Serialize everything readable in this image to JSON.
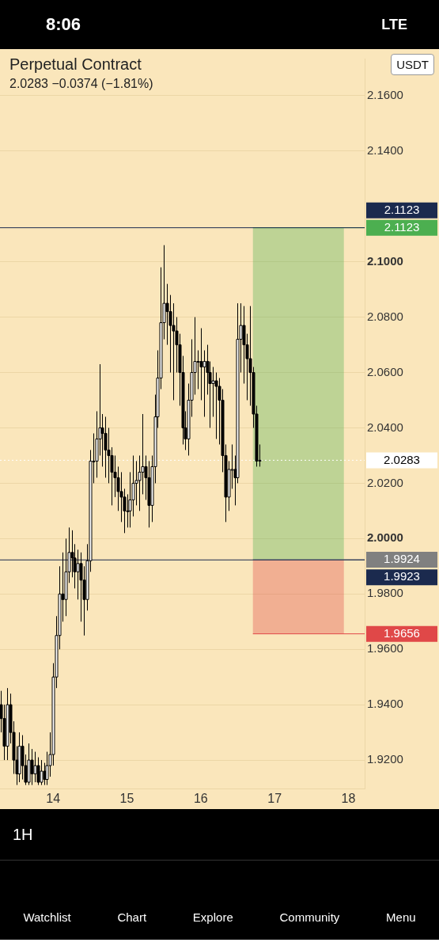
{
  "chart_data": {
    "type": "candlestick",
    "title": "Perpetual Contract",
    "subtitle": "2.0283 −0.0374 (−1.81%)",
    "x": [
      13.292,
      13.333,
      13.375,
      13.417,
      13.458,
      13.5,
      13.542,
      13.583,
      13.625,
      13.667,
      13.708,
      13.75,
      13.792,
      13.833,
      13.875,
      13.917,
      13.958,
      14,
      14.042,
      14.083,
      14.125,
      14.167,
      14.208,
      14.25,
      14.292,
      14.333,
      14.375,
      14.417,
      14.458,
      14.5,
      14.542,
      14.583,
      14.625,
      14.667,
      14.708,
      14.75,
      14.792,
      14.833,
      14.875,
      14.917,
      14.958,
      15,
      15.042,
      15.083,
      15.125,
      15.167,
      15.208,
      15.25,
      15.292,
      15.333,
      15.375,
      15.417,
      15.458,
      15.5,
      15.542,
      15.583,
      15.625,
      15.667,
      15.708,
      15.75,
      15.792,
      15.833,
      15.875,
      15.917,
      15.958,
      16,
      16.042,
      16.083,
      16.125,
      16.167,
      16.208,
      16.25,
      16.292,
      16.333,
      16.375,
      16.417,
      16.458,
      16.5,
      16.542,
      16.583,
      16.625,
      16.667,
      16.708,
      16.75,
      16.792
    ],
    "ohlc": [
      [
        1.94,
        1.945,
        1.93,
        1.935
      ],
      [
        1.935,
        1.94,
        1.92,
        1.925
      ],
      [
        1.925,
        1.946,
        1.92,
        1.94
      ],
      [
        1.94,
        1.944,
        1.926,
        1.93
      ],
      [
        1.93,
        1.934,
        1.915,
        1.92
      ],
      [
        1.92,
        1.925,
        1.911,
        1.915
      ],
      [
        1.915,
        1.93,
        1.912,
        1.925
      ],
      [
        1.925,
        1.929,
        1.913,
        1.918
      ],
      [
        1.918,
        1.922,
        1.911,
        1.912
      ],
      [
        1.912,
        1.926,
        1.911,
        1.92
      ],
      [
        1.92,
        1.924,
        1.911,
        1.915
      ],
      [
        1.915,
        1.923,
        1.912,
        1.918
      ],
      [
        1.918,
        1.921,
        1.911,
        1.912
      ],
      [
        1.912,
        1.92,
        1.911,
        1.916
      ],
      [
        1.916,
        1.919,
        1.911,
        1.913
      ],
      [
        1.913,
        1.923,
        1.911,
        1.918
      ],
      [
        1.918,
        1.93,
        1.914,
        1.922
      ],
      [
        1.922,
        1.955,
        1.918,
        1.95
      ],
      [
        1.95,
        1.972,
        1.946,
        1.965
      ],
      [
        1.965,
        1.99,
        1.96,
        1.98
      ],
      [
        1.98,
        1.995,
        1.97,
        1.978
      ],
      [
        1.978,
        2.0,
        1.972,
        1.988
      ],
      [
        1.988,
        2.004,
        1.984,
        1.995
      ],
      [
        1.995,
        2.003,
        1.986,
        1.993
      ],
      [
        1.993,
        1.998,
        1.982,
        1.988
      ],
      [
        1.988,
        1.996,
        1.978,
        1.991
      ],
      [
        1.991,
        1.995,
        1.97,
        1.985
      ],
      [
        1.985,
        1.99,
        1.965,
        1.978
      ],
      [
        1.978,
        1.998,
        1.974,
        1.992
      ],
      [
        1.992,
        2.032,
        1.988,
        2.028
      ],
      [
        2.028,
        2.038,
        2.02,
        2.028
      ],
      [
        2.028,
        2.046,
        2.022,
        2.036
      ],
      [
        2.036,
        2.063,
        2.03,
        2.04
      ],
      [
        2.04,
        2.045,
        2.026,
        2.038
      ],
      [
        2.038,
        2.044,
        2.022,
        2.032
      ],
      [
        2.032,
        2.04,
        2.02,
        2.03
      ],
      [
        2.03,
        2.033,
        2.012,
        2.024
      ],
      [
        2.024,
        2.03,
        2.015,
        2.022
      ],
      [
        2.022,
        2.026,
        2.01,
        2.017
      ],
      [
        2.017,
        2.024,
        2.006,
        2.015
      ],
      [
        2.015,
        2.018,
        2.002,
        2.01
      ],
      [
        2.01,
        2.016,
        2.004,
        2.01
      ],
      [
        2.01,
        2.024,
        2.004,
        2.014
      ],
      [
        2.014,
        2.03,
        2.008,
        2.02
      ],
      [
        2.02,
        2.028,
        2.012,
        2.021
      ],
      [
        2.021,
        2.03,
        2.01,
        2.024
      ],
      [
        2.024,
        2.045,
        2.016,
        2.026
      ],
      [
        2.026,
        2.03,
        2.014,
        2.022
      ],
      [
        2.022,
        2.028,
        2.004,
        2.012
      ],
      [
        2.012,
        2.03,
        2.006,
        2.026
      ],
      [
        2.026,
        2.052,
        2.02,
        2.044
      ],
      [
        2.044,
        2.068,
        2.04,
        2.058
      ],
      [
        2.058,
        2.098,
        2.054,
        2.078
      ],
      [
        2.078,
        2.106,
        2.072,
        2.085
      ],
      [
        2.085,
        2.092,
        2.07,
        2.082
      ],
      [
        2.082,
        2.088,
        2.06,
        2.077
      ],
      [
        2.077,
        2.085,
        2.05,
        2.075
      ],
      [
        2.075,
        2.08,
        2.06,
        2.07
      ],
      [
        2.07,
        2.074,
        2.048,
        2.06
      ],
      [
        2.06,
        2.066,
        2.034,
        2.04
      ],
      [
        2.04,
        2.046,
        2.032,
        2.036
      ],
      [
        2.036,
        2.056,
        2.03,
        2.05
      ],
      [
        2.05,
        2.072,
        2.044,
        2.06
      ],
      [
        2.06,
        2.08,
        2.052,
        2.064
      ],
      [
        2.064,
        2.068,
        2.054,
        2.064
      ],
      [
        2.064,
        2.076,
        2.05,
        2.062
      ],
      [
        2.062,
        2.068,
        2.044,
        2.064
      ],
      [
        2.064,
        2.07,
        2.052,
        2.06
      ],
      [
        2.06,
        2.064,
        2.04,
        2.056
      ],
      [
        2.056,
        2.062,
        2.044,
        2.057
      ],
      [
        2.057,
        2.06,
        2.036,
        2.055
      ],
      [
        2.055,
        2.058,
        2.034,
        2.05
      ],
      [
        2.05,
        2.054,
        2.024,
        2.03
      ],
      [
        2.03,
        2.034,
        2.006,
        2.015
      ],
      [
        2.015,
        2.028,
        2.01,
        2.025
      ],
      [
        2.025,
        2.034,
        2.018,
        2.025
      ],
      [
        2.025,
        2.03,
        2.012,
        2.022
      ],
      [
        2.022,
        2.085,
        2.02,
        2.072
      ],
      [
        2.072,
        2.085,
        2.06,
        2.077
      ],
      [
        2.077,
        2.084,
        2.056,
        2.07
      ],
      [
        2.07,
        2.074,
        2.05,
        2.065
      ],
      [
        2.065,
        2.084,
        2.048,
        2.06
      ],
      [
        2.06,
        2.062,
        2.04,
        2.045
      ],
      [
        2.045,
        2.048,
        2.026,
        2.028
      ],
      [
        2.028,
        2.034,
        2.026,
        2.0283
      ]
    ],
    "xlim": [
      13.28,
      18.22
    ],
    "xticks": [
      14,
      15,
      16,
      17,
      18
    ],
    "ylim": [
      1.9095,
      2.1734
    ],
    "yticks": [
      {
        "value": 1.92,
        "label": "1.9200"
      },
      {
        "value": 1.94,
        "label": "1.9400"
      },
      {
        "value": 1.96,
        "label": "1.9600"
      },
      {
        "value": 1.98,
        "label": "1.9800"
      },
      {
        "value": 2.0,
        "label": "2.0000"
      },
      {
        "value": 2.02,
        "label": "2.0200"
      },
      {
        "value": 2.04,
        "label": "2.0400"
      },
      {
        "value": 2.06,
        "label": "2.0600"
      },
      {
        "value": 2.08,
        "label": "2.0800"
      },
      {
        "value": 2.1,
        "label": "2.1000"
      },
      {
        "value": 2.14,
        "label": "2.1400"
      },
      {
        "value": 2.16,
        "label": "2.1600"
      }
    ],
    "grid": "y",
    "ref_lines": [
      {
        "axis": "y",
        "value": 2.1123,
        "label": "2.1123",
        "color": "#4caf50"
      },
      {
        "axis": "y",
        "value": 2.1123,
        "label": "2.1123",
        "color": "#1b2a4e"
      },
      {
        "axis": "y",
        "value": 2.0283,
        "label": "2.0283",
        "color": "#ffffff",
        "line_style": "dotted"
      },
      {
        "axis": "y",
        "value": 1.9924,
        "label": "1.9924",
        "color": "#808080"
      },
      {
        "axis": "y",
        "value": 1.9923,
        "label": "1.9923",
        "color": "#1b2a4e"
      },
      {
        "axis": "y",
        "value": 1.9656,
        "label": "1.9656",
        "color": "#e04848"
      }
    ],
    "bands": [
      {
        "axis": "y",
        "from": 1.9924,
        "to": 2.1123,
        "color": "#4caf50"
      },
      {
        "axis": "y",
        "from": 1.9656,
        "to": 1.9924,
        "color": "#e04848"
      }
    ],
    "annotations": [
      "8:06",
      "LTE",
      "USDT",
      "1H",
      "Watchlist",
      "Chart",
      "Explore",
      "Community",
      "Menu"
    ]
  }
}
